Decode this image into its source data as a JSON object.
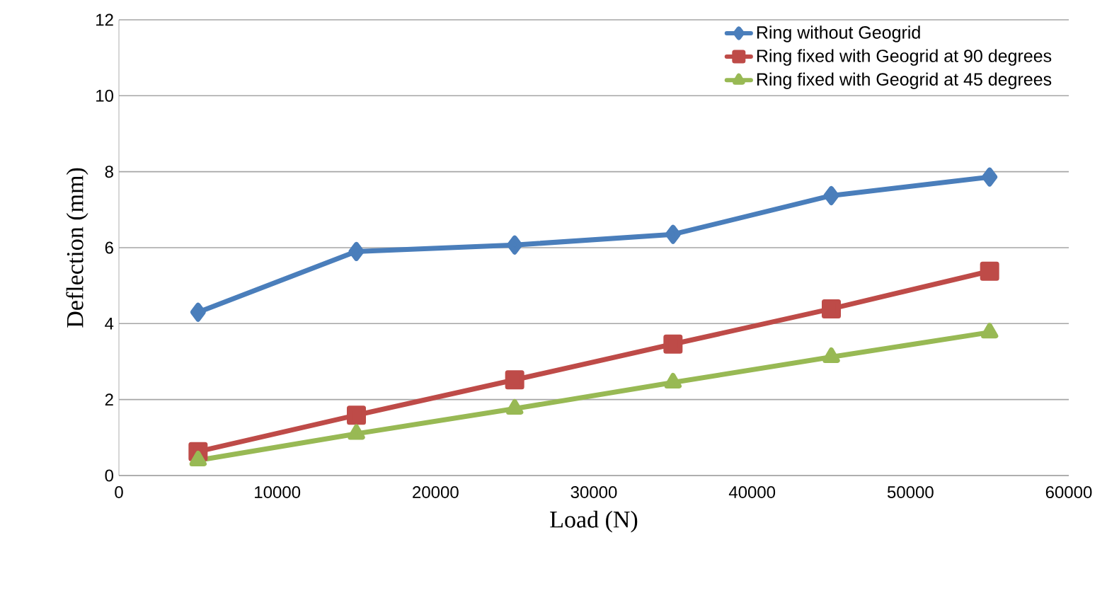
{
  "chart_data": {
    "type": "line",
    "xlabel": "Load (N)",
    "ylabel": "Deflection (mm)",
    "x": [
      5000,
      15000,
      25000,
      35000,
      45000,
      55000
    ],
    "series": [
      {
        "name": "Ring without Geogrid",
        "color": "#4a7ebb",
        "marker": "diamond",
        "values": [
          4.3,
          5.9,
          6.07,
          6.35,
          7.37,
          7.86
        ]
      },
      {
        "name": "Ring fixed with Geogrid at 90 degrees",
        "color": "#be4b48",
        "marker": "square",
        "values": [
          0.63,
          1.59,
          2.52,
          3.46,
          4.39,
          5.38
        ]
      },
      {
        "name": "Ring fixed with Geogrid at 45 degrees",
        "color": "#98b954",
        "marker": "triangle",
        "values": [
          0.4,
          1.1,
          1.76,
          2.45,
          3.12,
          3.77
        ]
      }
    ],
    "xlim": [
      0,
      60000
    ],
    "xticks": [
      0,
      10000,
      20000,
      30000,
      40000,
      50000,
      60000
    ],
    "ylim": [
      0,
      12
    ],
    "yticks": [
      0,
      2,
      4,
      6,
      8,
      10,
      12
    ],
    "grid": "y",
    "legend": "top right",
    "line_style": "solid"
  }
}
